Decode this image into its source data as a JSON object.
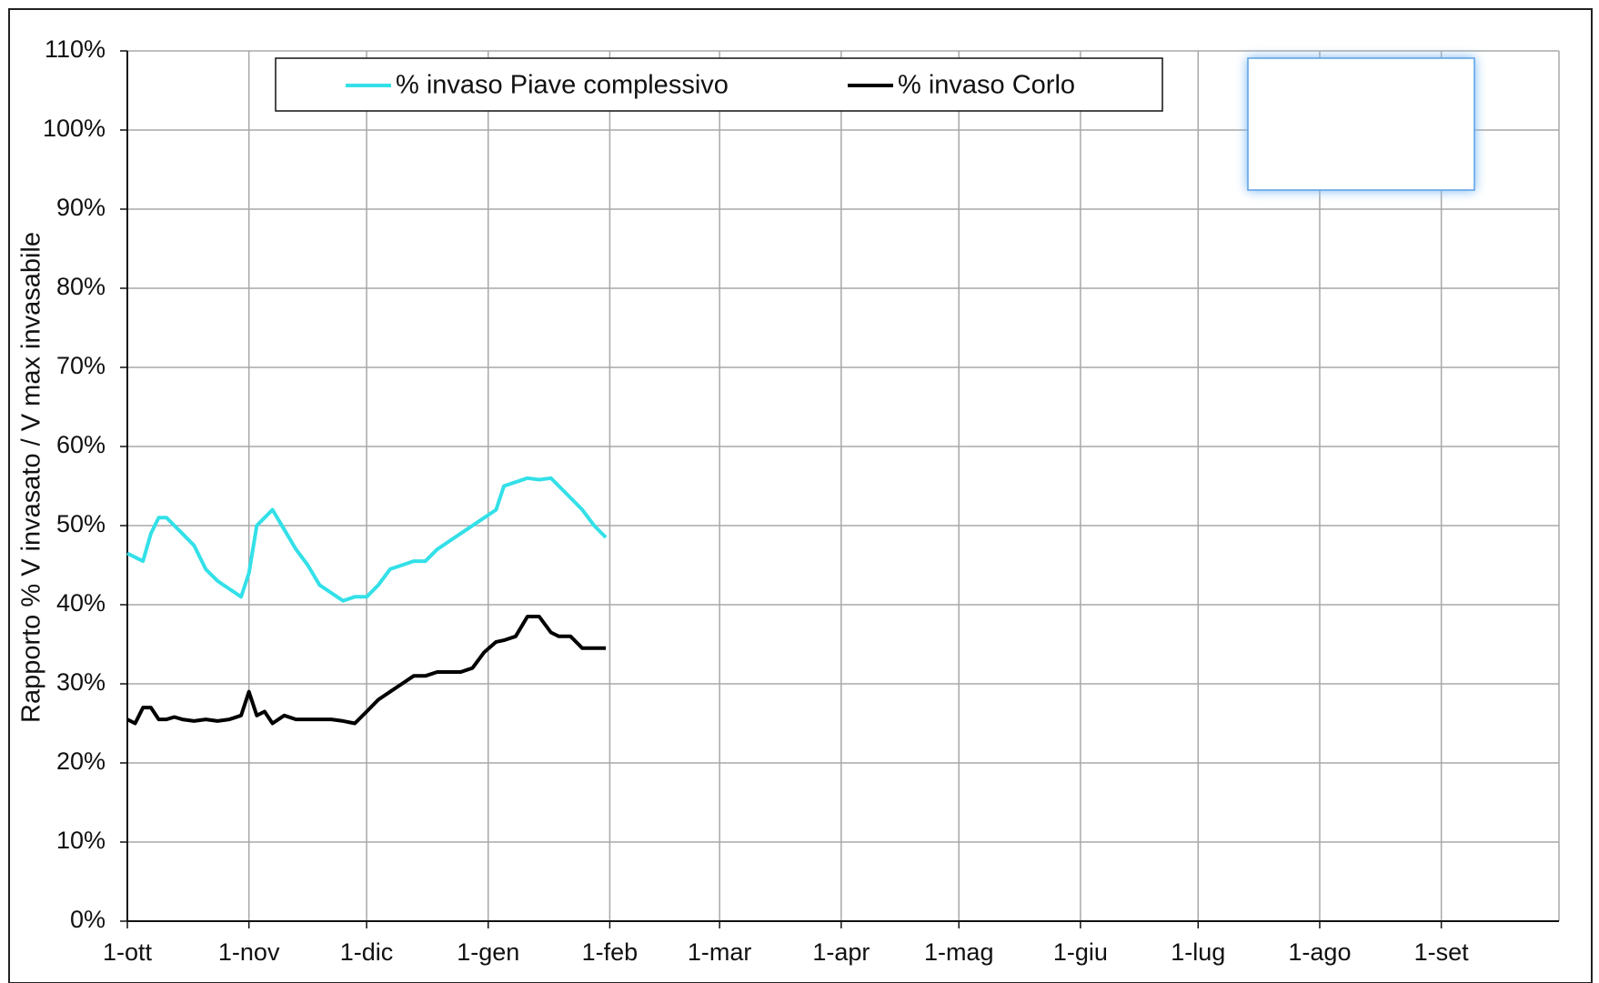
{
  "chart_data": {
    "type": "line",
    "y_label": "Rapporto % V invasato / V max invasabile",
    "x": [
      0,
      2,
      4,
      6,
      8,
      10,
      12,
      14,
      17,
      20,
      23,
      26,
      29,
      31,
      33,
      35,
      37,
      40,
      43,
      46,
      49,
      52,
      55,
      58,
      61,
      64,
      67,
      70,
      73,
      76,
      79,
      82,
      85,
      88,
      91,
      94,
      96,
      99,
      102,
      105,
      108,
      110,
      113,
      116,
      119,
      122
    ],
    "series": [
      {
        "name": "% invaso Piave complessivo",
        "color": "#33e0e8",
        "values": [
          46.5,
          46,
          45.5,
          49,
          51,
          51,
          50,
          49,
          47.5,
          44.5,
          43,
          42,
          41,
          44,
          50,
          51,
          52,
          49.5,
          47,
          45,
          42.5,
          41.5,
          40.5,
          41,
          41,
          42.5,
          44.5,
          45,
          45.5,
          45.5,
          47,
          48,
          49,
          50,
          51,
          52,
          55,
          55.5,
          56,
          55.8,
          56,
          55,
          53.5,
          52,
          50,
          48.5
        ]
      },
      {
        "name": "% invaso Corlo",
        "color": "#000000",
        "values": [
          25.5,
          25,
          27,
          27,
          25.5,
          25.5,
          25.8,
          25.5,
          25.3,
          25.5,
          25.3,
          25.5,
          26,
          29,
          26,
          26.5,
          25,
          26,
          25.5,
          25.5,
          25.5,
          25.5,
          25.3,
          25,
          26.5,
          28,
          29,
          30,
          31,
          31,
          31.5,
          31.5,
          31.5,
          32,
          34,
          35.3,
          35.5,
          36,
          38.5,
          38.5,
          36.5,
          36,
          36,
          34.5,
          34.5,
          34.5
        ]
      }
    ],
    "xlim": [
      0,
      365
    ],
    "xticks": [
      {
        "value": 0,
        "label": "1-ott"
      },
      {
        "value": 31,
        "label": "1-nov"
      },
      {
        "value": 61,
        "label": "1-dic"
      },
      {
        "value": 92,
        "label": "1-gen"
      },
      {
        "value": 123,
        "label": "1-feb"
      },
      {
        "value": 151,
        "label": "1-mar"
      },
      {
        "value": 182,
        "label": "1-apr"
      },
      {
        "value": 212,
        "label": "1-mag"
      },
      {
        "value": 243,
        "label": "1-giu"
      },
      {
        "value": 273,
        "label": "1-lug"
      },
      {
        "value": 304,
        "label": "1-ago"
      },
      {
        "value": 335,
        "label": "1-set"
      }
    ],
    "ylim": [
      0,
      110
    ],
    "yticks": [
      {
        "value": 0,
        "label": "0%"
      },
      {
        "value": 10,
        "label": "10%"
      },
      {
        "value": 20,
        "label": "20%"
      },
      {
        "value": 30,
        "label": "30%"
      },
      {
        "value": 40,
        "label": "40%"
      },
      {
        "value": 50,
        "label": "50%"
      },
      {
        "value": 60,
        "label": "60%"
      },
      {
        "value": 70,
        "label": "70%"
      },
      {
        "value": 80,
        "label": "80%"
      },
      {
        "value": 90,
        "label": "90%"
      },
      {
        "value": 100,
        "label": "100%"
      },
      {
        "value": 110,
        "label": "110%"
      }
    ],
    "grid": true
  }
}
